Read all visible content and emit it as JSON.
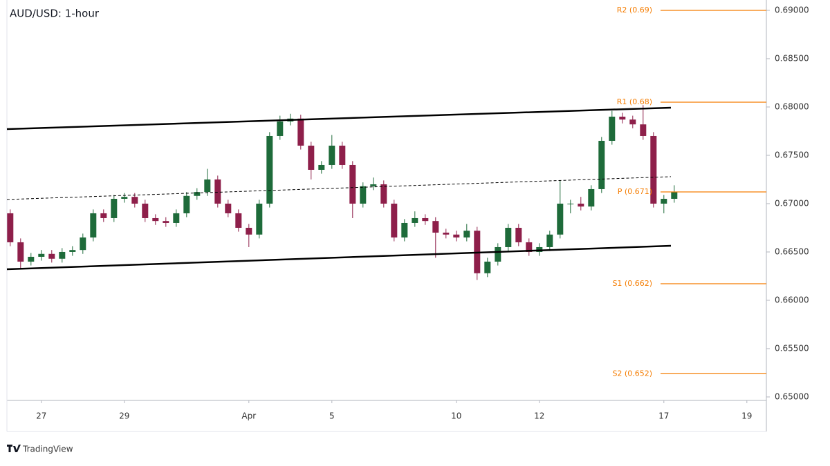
{
  "chart_data": {
    "type": "candlestick",
    "title": "AUD/USD: 1-hour",
    "x": [
      -0.75,
      -0.5,
      -0.25,
      0,
      0.25,
      0.5,
      0.75,
      1,
      1.25,
      1.5,
      1.75,
      2,
      2.25,
      2.5,
      2.75,
      3,
      3.25,
      3.5,
      3.75,
      4,
      4.25,
      4.5,
      4.75,
      5,
      5.25,
      5.5,
      5.75,
      6,
      6.25,
      6.5,
      6.75,
      7,
      7.25,
      7.5,
      7.75,
      8,
      8.25,
      8.5,
      8.75,
      9,
      9.25,
      9.5,
      9.75,
      10,
      10.25,
      10.5,
      10.75,
      11,
      11.25,
      11.5,
      11.75,
      12,
      12.25,
      12.5,
      12.75,
      13,
      13.25,
      13.5,
      13.75,
      14,
      14.25,
      14.5,
      14.75,
      15,
      15.25
    ],
    "open": [
      0.669,
      0.666,
      0.664,
      0.6645,
      0.6648,
      0.6643,
      0.665,
      0.6652,
      0.6665,
      0.669,
      0.6685,
      0.6705,
      0.6707,
      0.67,
      0.6685,
      0.6682,
      0.668,
      0.669,
      0.6708,
      0.6712,
      0.6725,
      0.67,
      0.669,
      0.6675,
      0.6668,
      0.67,
      0.677,
      0.6785,
      0.6788,
      0.676,
      0.6735,
      0.674,
      0.676,
      0.674,
      0.67,
      0.6718,
      0.672,
      0.67,
      0.6665,
      0.668,
      0.6685,
      0.6682,
      0.667,
      0.6668,
      0.6665,
      0.6672,
      0.6628,
      0.664,
      0.6655,
      0.6675,
      0.666,
      0.665,
      0.6655,
      0.6668,
      0.67,
      0.67,
      0.6697,
      0.6715,
      0.6765,
      0.679,
      0.6787,
      0.6782,
      0.677,
      0.67,
      0.6705
    ],
    "high": [
      0.6694,
      0.6664,
      0.6649,
      0.6652,
      0.6652,
      0.6654,
      0.6656,
      0.6669,
      0.6694,
      0.6694,
      0.6709,
      0.6711,
      0.6711,
      0.6704,
      0.6689,
      0.6686,
      0.6694,
      0.6712,
      0.6716,
      0.6736,
      0.6729,
      0.6704,
      0.6694,
      0.6679,
      0.6704,
      0.6774,
      0.6791,
      0.6793,
      0.6792,
      0.6764,
      0.6744,
      0.6771,
      0.6764,
      0.6744,
      0.6722,
      0.6727,
      0.6724,
      0.6704,
      0.6684,
      0.6692,
      0.6689,
      0.6686,
      0.6674,
      0.6672,
      0.6679,
      0.6676,
      0.6644,
      0.6659,
      0.6679,
      0.6679,
      0.6664,
      0.6659,
      0.6672,
      0.6724,
      0.6704,
      0.6707,
      0.6719,
      0.6769,
      0.6796,
      0.6794,
      0.6791,
      0.6802,
      0.6774,
      0.6709,
      0.6719
    ],
    "low": [
      0.6656,
      0.6632,
      0.6636,
      0.6641,
      0.6639,
      0.6639,
      0.6646,
      0.6648,
      0.6661,
      0.6681,
      0.6681,
      0.6701,
      0.6696,
      0.6681,
      0.6678,
      0.6676,
      0.6676,
      0.6686,
      0.6704,
      0.6708,
      0.6696,
      0.6686,
      0.6671,
      0.6655,
      0.6664,
      0.6696,
      0.6766,
      0.6781,
      0.6756,
      0.6725,
      0.6731,
      0.6736,
      0.6736,
      0.6685,
      0.6696,
      0.6714,
      0.6696,
      0.6661,
      0.6661,
      0.6676,
      0.6678,
      0.6644,
      0.6664,
      0.6661,
      0.6661,
      0.6621,
      0.6624,
      0.6636,
      0.6651,
      0.6656,
      0.6646,
      0.6646,
      0.6651,
      0.6664,
      0.669,
      0.6693,
      0.6693,
      0.6711,
      0.6761,
      0.6783,
      0.6778,
      0.6766,
      0.6696,
      0.669,
      0.6701
    ],
    "close": [
      0.666,
      0.664,
      0.6645,
      0.6648,
      0.6643,
      0.665,
      0.6652,
      0.6665,
      0.669,
      0.6685,
      0.6705,
      0.6707,
      0.67,
      0.6685,
      0.6682,
      0.668,
      0.669,
      0.6708,
      0.6712,
      0.6725,
      0.67,
      0.669,
      0.6675,
      0.6668,
      0.67,
      0.677,
      0.6785,
      0.6788,
      0.676,
      0.6735,
      0.674,
      0.676,
      0.674,
      0.67,
      0.6718,
      0.672,
      0.67,
      0.6665,
      0.668,
      0.6685,
      0.6682,
      0.667,
      0.6668,
      0.6665,
      0.6672,
      0.6628,
      0.664,
      0.6655,
      0.6675,
      0.666,
      0.665,
      0.6655,
      0.6668,
      0.67,
      0.67,
      0.6697,
      0.6715,
      0.6765,
      0.679,
      0.6787,
      0.6782,
      0.677,
      0.67,
      0.6705,
      0.6712
    ],
    "up_color": "#1e6b3a",
    "down_color": "#8e1f4a",
    "xlim": [
      -0.83,
      17.47
    ],
    "xticks": [
      {
        "value": 0,
        "label": "27"
      },
      {
        "value": 2,
        "label": "29"
      },
      {
        "value": 5,
        "label": "Apr"
      },
      {
        "value": 7,
        "label": "5"
      },
      {
        "value": 10,
        "label": "10"
      },
      {
        "value": 12,
        "label": "12"
      },
      {
        "value": 15,
        "label": "17"
      },
      {
        "value": 17,
        "label": "19"
      }
    ],
    "ylim": [
      0.64964,
      0.69107
    ],
    "yticks": [
      {
        "value": 0.65,
        "label": "0.65000"
      },
      {
        "value": 0.655,
        "label": "0.65500"
      },
      {
        "value": 0.66,
        "label": "0.66000"
      },
      {
        "value": 0.665,
        "label": "0.66500"
      },
      {
        "value": 0.67,
        "label": "0.67000"
      },
      {
        "value": 0.675,
        "label": "0.67500"
      },
      {
        "value": 0.68,
        "label": "0.68000"
      },
      {
        "value": 0.685,
        "label": "0.68500"
      },
      {
        "value": 0.69,
        "label": "0.69000"
      }
    ],
    "trendlines": [
      {
        "x": [
          -0.83,
          15.17
        ],
        "y": [
          0.67771,
          0.67993
        ],
        "style": "solid"
      },
      {
        "x": [
          -0.83,
          15.17
        ],
        "y": [
          0.67043,
          0.67279
        ],
        "style": "dashed"
      },
      {
        "x": [
          -0.83,
          15.17
        ],
        "y": [
          0.66321,
          0.66564
        ],
        "style": "solid"
      }
    ],
    "levels": [
      {
        "value": 0.69,
        "label": "R2 (0.69)"
      },
      {
        "value": 0.6805,
        "label": "R1 (0.68)"
      },
      {
        "value": 0.67121,
        "label": "P (0.671)"
      },
      {
        "value": 0.66171,
        "label": "S1 (0.662)"
      },
      {
        "value": 0.6524,
        "label": "S2 (0.652)"
      }
    ],
    "level_color": "#f57c00",
    "brand": "TradingView"
  }
}
